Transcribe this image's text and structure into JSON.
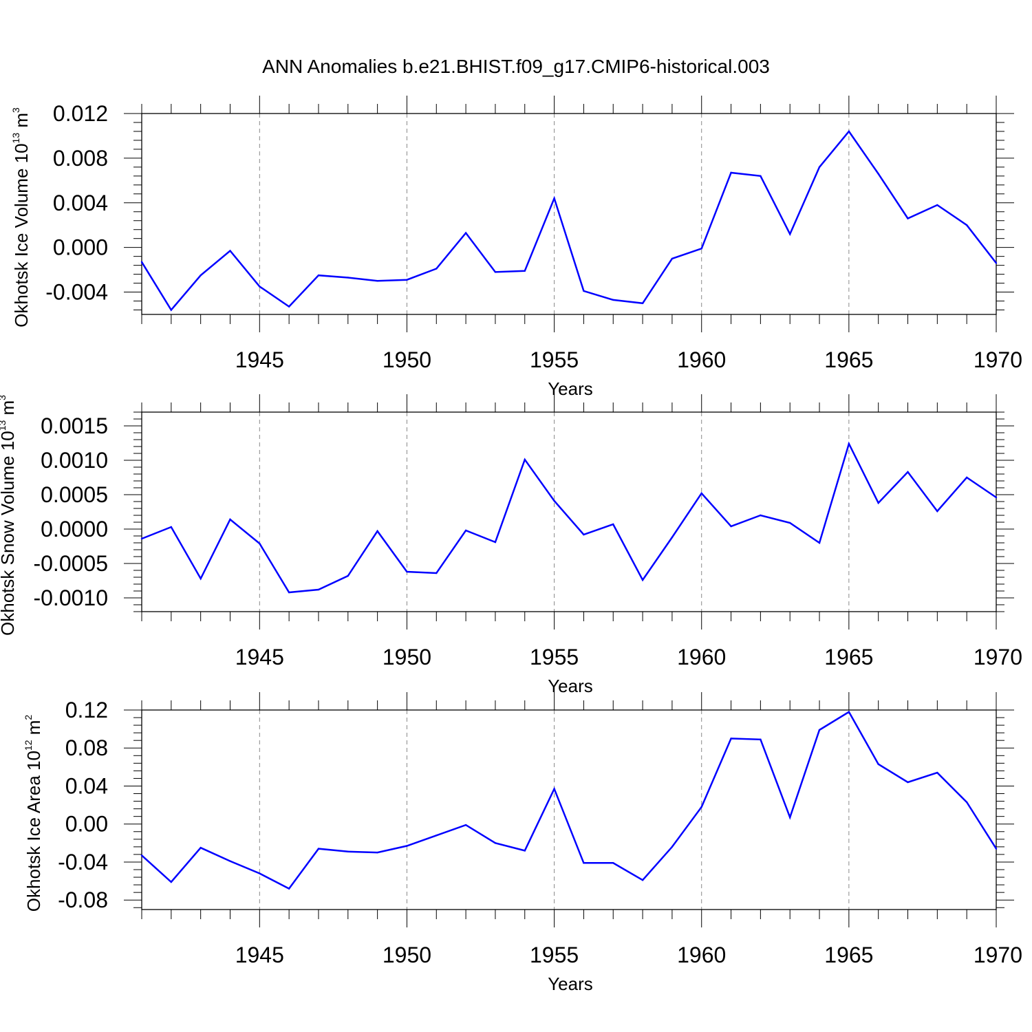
{
  "chart_data": [
    {
      "type": "line",
      "title": "ANN Anomalies b.e21.BHIST.f09_g17.CMIP6-historical.003",
      "ylabel": "Okhotsk Ice Volume 10",
      "ylabel_exp": "13",
      "ylabel_unit": " m",
      "ylabel_unit_exp": "3",
      "xlabel": "Years",
      "xlim": [
        1941,
        1970
      ],
      "ylim": [
        -0.006,
        0.012
      ],
      "yticks": [
        "0.012",
        "0.008",
        "0.004",
        "0.000",
        "-0.004"
      ],
      "ytick_values": [
        0.012,
        0.008,
        0.004,
        0.0,
        -0.004
      ],
      "xticks": [
        "1945",
        "1950",
        "1955",
        "1960",
        "1965",
        "1970"
      ],
      "xtick_values": [
        1945,
        1950,
        1955,
        1960,
        1965,
        1970
      ],
      "grid": "x-dashed",
      "color": "#0000ff",
      "x": [
        1941,
        1942,
        1943,
        1944,
        1945,
        1946,
        1947,
        1948,
        1949,
        1950,
        1951,
        1952,
        1953,
        1954,
        1955,
        1956,
        1957,
        1958,
        1959,
        1960,
        1961,
        1962,
        1963,
        1964,
        1965,
        1966,
        1967,
        1968,
        1969,
        1970
      ],
      "values": [
        -0.0013,
        -0.0056,
        -0.0025,
        -0.0003,
        -0.0035,
        -0.0053,
        -0.0025,
        -0.0027,
        -0.003,
        -0.0029,
        -0.0019,
        0.0013,
        -0.0022,
        -0.0021,
        0.0044,
        -0.0039,
        -0.0047,
        -0.005,
        -0.001,
        -0.0001,
        0.0067,
        0.0064,
        0.0012,
        0.0072,
        0.0104,
        0.0066,
        0.0026,
        0.0038,
        0.002,
        -0.0014
      ]
    },
    {
      "type": "line",
      "ylabel": "Okhotsk Snow Volume 10",
      "ylabel_exp": "13",
      "ylabel_unit": " m",
      "ylabel_unit_exp": "3",
      "xlabel": "Years",
      "xlim": [
        1941,
        1970
      ],
      "ylim": [
        -0.0012,
        0.0017
      ],
      "yticks": [
        "0.0015",
        "0.0010",
        "0.0005",
        "0.0000",
        "-0.0005",
        "-0.0010"
      ],
      "ytick_values": [
        0.0015,
        0.001,
        0.0005,
        0.0,
        -0.0005,
        -0.001
      ],
      "xticks": [
        "1945",
        "1950",
        "1955",
        "1960",
        "1965",
        "1970"
      ],
      "xtick_values": [
        1945,
        1950,
        1955,
        1960,
        1965,
        1970
      ],
      "grid": "x-dashed",
      "color": "#0000ff",
      "x": [
        1941,
        1942,
        1943,
        1944,
        1945,
        1946,
        1947,
        1948,
        1949,
        1950,
        1951,
        1952,
        1953,
        1954,
        1955,
        1956,
        1957,
        1958,
        1959,
        1960,
        1961,
        1962,
        1963,
        1964,
        1965,
        1966,
        1967,
        1968,
        1969,
        1970
      ],
      "values": [
        -0.00014,
        3e-05,
        -0.00072,
        0.00014,
        -0.00021,
        -0.00092,
        -0.00088,
        -0.00068,
        -3e-05,
        -0.00062,
        -0.00064,
        -2e-05,
        -0.00019,
        0.00101,
        0.00041,
        -8e-05,
        7e-05,
        -0.00074,
        -0.00012,
        0.00052,
        4e-05,
        0.0002,
        9e-05,
        -0.0002,
        0.00124,
        0.00038,
        0.00083,
        0.00026,
        0.00075,
        0.00046
      ]
    },
    {
      "type": "line",
      "ylabel": "Okhotsk Ice Area 10",
      "ylabel_exp": "12",
      "ylabel_unit": " m",
      "ylabel_unit_exp": "2",
      "xlabel": "Years",
      "xlim": [
        1941,
        1970
      ],
      "ylim": [
        -0.09,
        0.12
      ],
      "yticks": [
        "0.12",
        "0.08",
        "0.04",
        "0.00",
        "-0.04",
        "-0.08"
      ],
      "ytick_values": [
        0.12,
        0.08,
        0.04,
        0.0,
        -0.04,
        -0.08
      ],
      "xticks": [
        "1945",
        "1950",
        "1955",
        "1960",
        "1965",
        "1970"
      ],
      "xtick_values": [
        1945,
        1950,
        1955,
        1960,
        1965,
        1970
      ],
      "grid": "x-dashed",
      "color": "#0000ff",
      "x": [
        1941,
        1942,
        1943,
        1944,
        1945,
        1946,
        1947,
        1948,
        1949,
        1950,
        1951,
        1952,
        1953,
        1954,
        1955,
        1956,
        1957,
        1958,
        1959,
        1960,
        1961,
        1962,
        1963,
        1964,
        1965,
        1966,
        1967,
        1968,
        1969,
        1970
      ],
      "values": [
        -0.033,
        -0.061,
        -0.025,
        -0.039,
        -0.052,
        -0.068,
        -0.026,
        -0.029,
        -0.03,
        -0.023,
        -0.012,
        -0.001,
        -0.02,
        -0.028,
        0.037,
        -0.041,
        -0.041,
        -0.059,
        -0.024,
        0.018,
        0.09,
        0.089,
        0.007,
        0.099,
        0.118,
        0.063,
        0.044,
        0.054,
        0.023,
        -0.026
      ]
    }
  ]
}
